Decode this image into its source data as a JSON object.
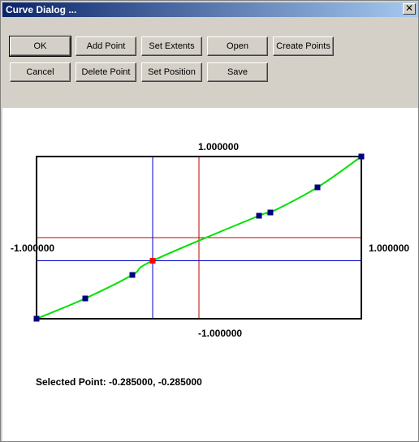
{
  "window": {
    "title": "Curve Dialog ..."
  },
  "toolbar": {
    "ok": "OK",
    "add_point": "Add Point",
    "set_extents": "Set Extents",
    "open": "Open",
    "create_points": "Create Points",
    "cancel": "Cancel",
    "delete_point": "Delete Point",
    "set_position": "Set Position",
    "save": "Save"
  },
  "plot": {
    "top_label": "1.000000",
    "bottom_label": "-1.000000",
    "left_label": "-1.000000",
    "right_label": "1.000000",
    "x_range": [
      -1,
      1
    ],
    "y_range": [
      -1,
      1
    ],
    "curve_color": "#00e000",
    "point_color": "#000080",
    "selected_point_color": "#ff0000",
    "origin_line_color": "#c00000",
    "cursor_line_color": "#0000c0",
    "points": [
      [
        -1.0,
        -1.0
      ],
      [
        -0.7,
        -0.75
      ],
      [
        -0.41,
        -0.46
      ],
      [
        -0.285,
        -0.285
      ],
      [
        0.37,
        0.27
      ],
      [
        0.44,
        0.31
      ],
      [
        0.73,
        0.62
      ],
      [
        1.0,
        1.0
      ]
    ],
    "selected_index": 3
  },
  "status": {
    "selected_point": "Selected Point: -0.285000, -0.285000"
  }
}
